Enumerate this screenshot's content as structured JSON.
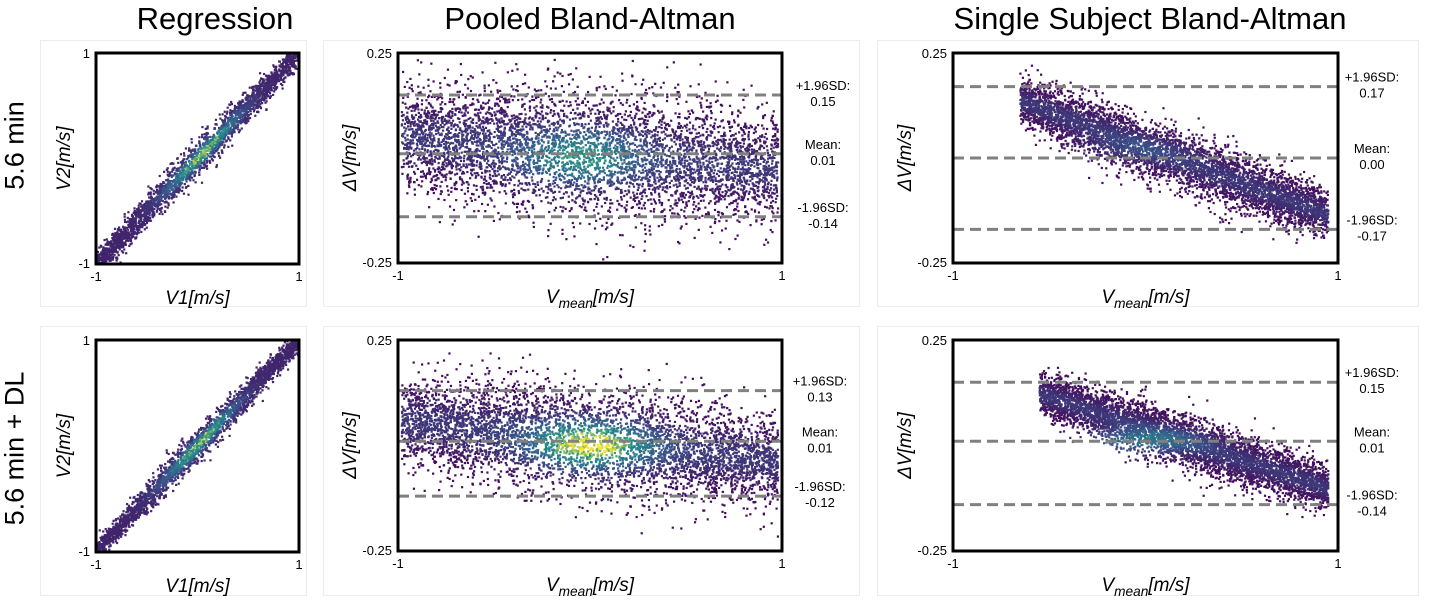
{
  "column_titles": [
    "Regression",
    "Pooled Bland-Altman",
    "Single Subject Bland-Altman"
  ],
  "row_labels": [
    "5.6 min",
    "5.6 min + DL"
  ],
  "colors": {
    "low": "#440154",
    "mid": "#21918c",
    "high": "#fde725",
    "line": "#808080",
    "axis": "#000000"
  },
  "chart_data": [
    {
      "id": "reg-top",
      "type": "scatter",
      "style": "regression",
      "seed": 11,
      "x_range": [
        -1,
        1
      ],
      "y_range": [
        -1,
        1
      ],
      "xtick_labels": [
        "-1",
        "1"
      ],
      "ytick_labels": [
        "-1",
        "1"
      ],
      "xlabel": {
        "base": "V1",
        "sub": "",
        "unit": "[m/s]"
      },
      "ylabel": {
        "base": "V2",
        "sub": "",
        "unit": "[m/s]"
      },
      "spread": 0.045,
      "hot_center": 0.05
    },
    {
      "id": "pooled-top",
      "type": "scatter",
      "style": "bland-altman",
      "seed": 23,
      "x_range": [
        -1,
        1
      ],
      "y_range": [
        -0.25,
        0.25
      ],
      "xtick_labels": [
        "-1",
        "1"
      ],
      "ytick_labels": [
        "0.25",
        "-0.25"
      ],
      "xlabel": {
        "base": "V",
        "sub": "mean",
        "unit": "[m/s]"
      },
      "ylabel": {
        "base": "ΔV",
        "sub": "",
        "unit": "[m/s]"
      },
      "mean": 0.01,
      "upper": 0.15,
      "lower": -0.14,
      "lines": [
        {
          "label": "+1.96SD:",
          "value": "0.15",
          "y": 0.15
        },
        {
          "label": "Mean:",
          "value": "0.01",
          "y": 0.01
        },
        {
          "label": "-1.96SD:",
          "value": "-0.14",
          "y": -0.14
        }
      ],
      "x_span": [
        -0.98,
        0.98
      ],
      "sigma": 0.06,
      "slope": -0.04,
      "hot_center": [
        -0.05,
        0.0
      ],
      "heat": 0.55
    },
    {
      "id": "single-top",
      "type": "scatter",
      "style": "bland-altman",
      "seed": 37,
      "x_range": [
        -1,
        1
      ],
      "y_range": [
        -0.25,
        0.25
      ],
      "xtick_labels": [
        "-1",
        "1"
      ],
      "ytick_labels": [
        "0.25",
        "-0.25"
      ],
      "xlabel": {
        "base": "V",
        "sub": "mean",
        "unit": "[m/s]"
      },
      "ylabel": {
        "base": "ΔV",
        "sub": "",
        "unit": "[m/s]"
      },
      "mean": 0.0,
      "upper": 0.17,
      "lower": -0.17,
      "lines": [
        {
          "label": "+1.96SD:",
          "value": "0.17",
          "y": 0.17
        },
        {
          "label": "Mean:",
          "value": "0.00",
          "y": 0.0
        },
        {
          "label": "-1.96SD:",
          "value": "-0.17",
          "y": -0.17
        }
      ],
      "x_span": [
        -0.65,
        0.95
      ],
      "sigma": 0.028,
      "slope": -0.17,
      "hot_center": [
        -0.1,
        0.02
      ],
      "heat": 0.15
    },
    {
      "id": "reg-bottom",
      "type": "scatter",
      "style": "regression",
      "seed": 53,
      "x_range": [
        -1,
        1
      ],
      "y_range": [
        -1,
        1
      ],
      "xtick_labels": [
        "-1",
        "1"
      ],
      "ytick_labels": [
        "-1",
        "1"
      ],
      "xlabel": {
        "base": "V1",
        "sub": "",
        "unit": "[m/s]"
      },
      "ylabel": {
        "base": "V2",
        "sub": "",
        "unit": "[m/s]"
      },
      "spread": 0.04,
      "hot_center": 0.02
    },
    {
      "id": "pooled-bottom",
      "type": "scatter",
      "style": "bland-altman",
      "seed": 71,
      "x_range": [
        -1,
        1
      ],
      "y_range": [
        -0.25,
        0.25
      ],
      "xtick_labels": [
        "-1",
        "1"
      ],
      "ytick_labels": [
        "0.25",
        "-0.25"
      ],
      "xlabel": {
        "base": "V",
        "sub": "mean",
        "unit": "[m/s]"
      },
      "ylabel": {
        "base": "ΔV",
        "sub": "",
        "unit": "[m/s]"
      },
      "mean": 0.01,
      "upper": 0.13,
      "lower": -0.12,
      "lines": [
        {
          "label": "+1.96SD:",
          "value": "0.13",
          "y": 0.13
        },
        {
          "label": "Mean:",
          "value": "0.01",
          "y": 0.01
        },
        {
          "label": "-1.96SD:",
          "value": "-0.12",
          "y": -0.12
        }
      ],
      "x_span": [
        -0.98,
        0.98
      ],
      "sigma": 0.05,
      "slope": -0.05,
      "hot_center": [
        0.0,
        0.0
      ],
      "heat": 0.9
    },
    {
      "id": "single-bottom",
      "type": "scatter",
      "style": "bland-altman",
      "seed": 89,
      "x_range": [
        -1,
        1
      ],
      "y_range": [
        -0.25,
        0.25
      ],
      "xtick_labels": [
        "-1",
        "1"
      ],
      "ytick_labels": [
        "0.25",
        "-0.25"
      ],
      "xlabel": {
        "base": "V",
        "sub": "mean",
        "unit": "[m/s]"
      },
      "ylabel": {
        "base": "ΔV",
        "sub": "",
        "unit": "[m/s]"
      },
      "mean": 0.01,
      "upper": 0.15,
      "lower": -0.14,
      "lines": [
        {
          "label": "+1.96SD:",
          "value": "0.15",
          "y": 0.15
        },
        {
          "label": "Mean:",
          "value": "0.01",
          "y": 0.01
        },
        {
          "label": "-1.96SD:",
          "value": "-0.14",
          "y": -0.14
        }
      ],
      "x_span": [
        -0.55,
        0.95
      ],
      "sigma": 0.025,
      "slope": -0.15,
      "hot_center": [
        -0.05,
        0.01
      ],
      "heat": 0.5
    }
  ]
}
